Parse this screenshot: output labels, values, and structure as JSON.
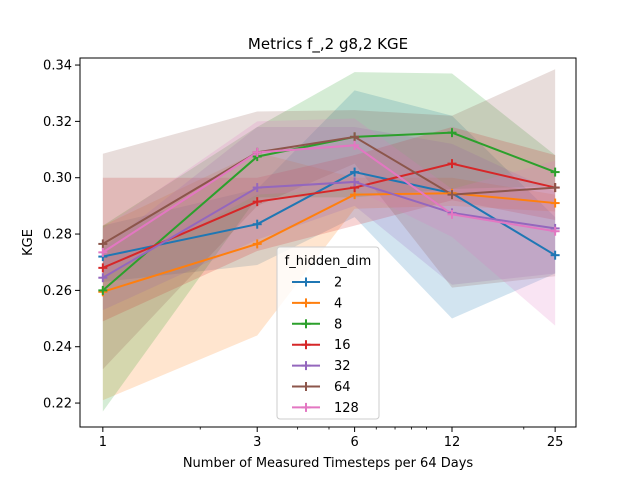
{
  "chart_data": {
    "type": "line",
    "title": "Metrics f_,2 g8,2 KGE",
    "xlabel": "Number of Measured Timesteps per 64 Days",
    "ylabel": "KGE",
    "x_scale": "log",
    "x": [
      1,
      3,
      6,
      12,
      25
    ],
    "x_tick_labels": [
      "1",
      "3",
      "6",
      "12",
      "25"
    ],
    "xlim": [
      0.85,
      29
    ],
    "ylim": [
      0.2115,
      0.3425
    ],
    "y_ticks": [
      0.22,
      0.24,
      0.26,
      0.28,
      0.3,
      0.32,
      0.34
    ],
    "y_tick_labels": [
      "0.22",
      "0.24",
      "0.26",
      "0.28",
      "0.30",
      "0.32",
      "0.34"
    ],
    "grid": false,
    "legend": {
      "title": "f_hidden_dim",
      "placement": "lower-center"
    },
    "series": [
      {
        "name": "2",
        "color": "#1f77b4",
        "values": [
          0.272,
          0.2835,
          0.302,
          0.2945,
          0.2725
        ],
        "lower": [
          0.263,
          0.269,
          0.286,
          0.25,
          0.266
        ],
        "upper": [
          0.283,
          0.296,
          0.331,
          0.322,
          0.286
        ]
      },
      {
        "name": "4",
        "color": "#ff7f0e",
        "values": [
          0.2595,
          0.2765,
          0.294,
          0.2945,
          0.291
        ],
        "lower": [
          0.221,
          0.244,
          0.289,
          0.29,
          0.288
        ],
        "upper": [
          0.283,
          0.309,
          0.3,
          0.3,
          0.294
        ]
      },
      {
        "name": "8",
        "color": "#2ca02c",
        "values": [
          0.26,
          0.3075,
          0.3145,
          0.316,
          0.302
        ],
        "lower": [
          0.217,
          0.293,
          0.293,
          0.296,
          0.297
        ],
        "upper": [
          0.283,
          0.318,
          0.3375,
          0.337,
          0.308
        ]
      },
      {
        "name": "16",
        "color": "#d62728",
        "values": [
          0.268,
          0.2915,
          0.2965,
          0.305,
          0.2965
        ],
        "lower": [
          0.249,
          0.274,
          0.283,
          0.292,
          0.285
        ],
        "upper": [
          0.3,
          0.3,
          0.308,
          0.318,
          0.308
        ]
      },
      {
        "name": "32",
        "color": "#9467bd",
        "values": [
          0.2645,
          0.2965,
          0.2985,
          0.2875,
          0.282
        ],
        "lower": [
          0.253,
          0.278,
          0.29,
          0.262,
          0.266
        ],
        "upper": [
          0.275,
          0.318,
          0.318,
          0.312,
          0.295
        ]
      },
      {
        "name": "64",
        "color": "#8c564b",
        "values": [
          0.2765,
          0.309,
          0.3145,
          0.294,
          0.2965
        ],
        "lower": [
          0.232,
          0.29,
          0.305,
          0.261,
          0.265
        ],
        "upper": [
          0.3085,
          0.3235,
          0.324,
          0.322,
          0.3385
        ]
      },
      {
        "name": "128",
        "color": "#e377c2",
        "values": [
          0.2735,
          0.309,
          0.3115,
          0.287,
          0.281
        ],
        "lower": [
          0.265,
          0.294,
          0.296,
          0.279,
          0.2475
        ],
        "upper": [
          0.282,
          0.32,
          0.321,
          0.296,
          0.306
        ]
      }
    ]
  }
}
